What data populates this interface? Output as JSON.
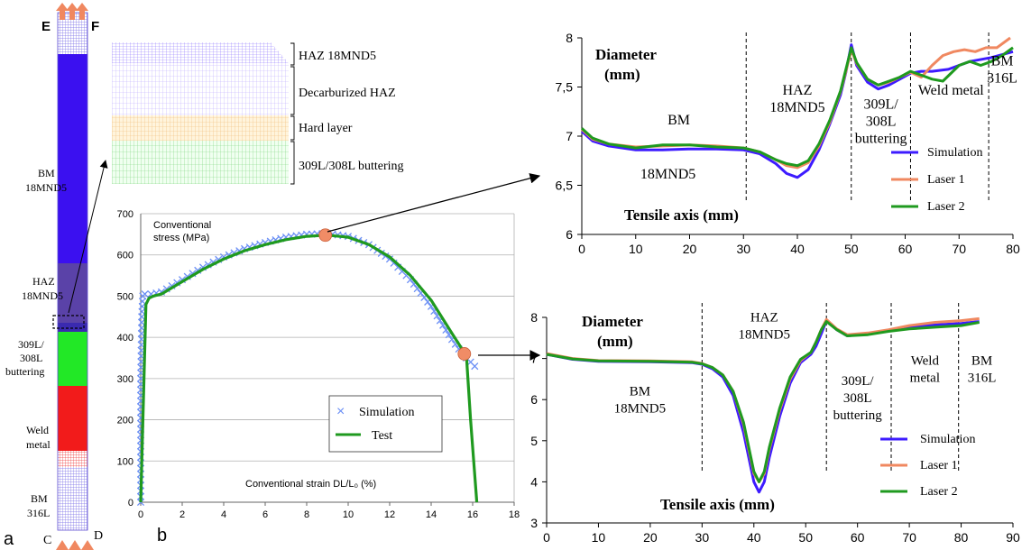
{
  "panel_labels": {
    "a": "a",
    "b": "b"
  },
  "specimen": {
    "corner_labels": {
      "E": "E",
      "F": "F",
      "C": "C",
      "D": "D"
    },
    "zones": [
      {
        "key": "bm_18mnd5",
        "lines": [
          "BM",
          "18MND5"
        ],
        "color": "#3b10f0"
      },
      {
        "key": "haz_18mnd5",
        "lines": [
          "HAZ",
          "18MND5"
        ],
        "color": "#5a42a8"
      },
      {
        "key": "buttering",
        "lines": [
          "309L/",
          "308L",
          "buttering"
        ],
        "color": "#22e826"
      },
      {
        "key": "weld_metal",
        "lines": [
          "Weld",
          "metal"
        ],
        "color": "#f21b1b"
      },
      {
        "key": "bm_316l",
        "lines": [
          "BM",
          "316L"
        ],
        "color": "#7a6ee8"
      }
    ]
  },
  "mesh_zoom": {
    "layers": [
      {
        "label": "HAZ 18MND5",
        "color": "#8e74ff"
      },
      {
        "label": "Decarburized HAZ",
        "color": "#b9a8ff"
      },
      {
        "label": "Hard layer",
        "color": "#ffd9a0"
      },
      {
        "label": "309L/308L buttering",
        "color": "#9be89b"
      }
    ]
  },
  "colors": {
    "simulation": "#3d1bff",
    "laser1": "#f08860",
    "laser2": "#1f9a1f",
    "test": "#1f9a1f",
    "sim_marker": "#6b8ff5",
    "highlight": "#f08c66"
  },
  "chart_data": [
    {
      "id": "stress_strain",
      "type": "line",
      "xlabel": "Conventional strain DL/L₀ (%)",
      "ylabel": "Conventional stress (MPa)",
      "ylabel_lines": [
        "Conventional",
        "stress (MPa)"
      ],
      "xlim": [
        0,
        18
      ],
      "ylim": [
        0,
        700
      ],
      "xticks": [
        0,
        2,
        4,
        6,
        8,
        10,
        12,
        14,
        16,
        18
      ],
      "yticks": [
        0,
        100,
        200,
        300,
        400,
        500,
        600,
        700
      ],
      "grid": "horizontal",
      "legend_position": "center-right",
      "series": [
        {
          "name": "Simulation",
          "marker": "x",
          "x": [
            0,
            0,
            0,
            0.05,
            0.1,
            0.2,
            0.5,
            1,
            2,
            3,
            4,
            5,
            6,
            7,
            8,
            9,
            10,
            11,
            12,
            13,
            14,
            15,
            15.5,
            16.1
          ],
          "y": [
            0,
            150,
            300,
            450,
            500,
            505,
            505,
            510,
            540,
            570,
            595,
            615,
            630,
            643,
            650,
            652,
            645,
            625,
            590,
            540,
            475,
            395,
            360,
            330
          ]
        },
        {
          "name": "Test",
          "x": [
            0,
            0.25,
            0.4,
            0.6,
            1,
            2,
            3,
            4,
            5,
            6,
            7,
            8,
            9,
            10,
            11,
            12,
            13,
            14,
            15,
            15.7,
            15.9,
            16.2
          ],
          "y": [
            0,
            480,
            495,
            500,
            505,
            535,
            565,
            590,
            610,
            625,
            637,
            645,
            648,
            643,
            625,
            595,
            550,
            490,
            410,
            355,
            200,
            0
          ]
        }
      ],
      "highlights": [
        {
          "x": 8.9,
          "y": 648
        },
        {
          "x": 15.6,
          "y": 360
        }
      ]
    },
    {
      "id": "diameter_top",
      "type": "line",
      "ylabel_lines": [
        "Diameter",
        "(mm)"
      ],
      "xlabel": "Tensile axis (mm)",
      "xlim": [
        0,
        80
      ],
      "ylim": [
        6,
        8
      ],
      "xticks": [
        0,
        10,
        20,
        30,
        40,
        50,
        60,
        70,
        80
      ],
      "ytick_labels": [
        {
          "v": 6,
          "t": "6"
        },
        {
          "v": 6.5,
          "t": "6,5"
        },
        {
          "v": 7,
          "t": "7"
        },
        {
          "v": 7.5,
          "t": "7,5"
        },
        {
          "v": 8,
          "t": "8"
        }
      ],
      "zone_lines_x": [
        30.5,
        50,
        61,
        75.5
      ],
      "zone_labels": [
        {
          "lines": [
            "BM"
          ],
          "x": 18,
          "y": 7.12
        },
        {
          "lines": [
            "18MND5"
          ],
          "x": 16,
          "y": 6.57
        },
        {
          "lines": [
            "HAZ",
            "18MND5"
          ],
          "x": 40,
          "y": 7.42
        },
        {
          "lines": [
            "309L/",
            "308L",
            "buttering"
          ],
          "x": 55.5,
          "y": 7.28
        },
        {
          "lines": [
            "Weld metal"
          ],
          "x": 68.5,
          "y": 7.42
        },
        {
          "lines": [
            "BM",
            "316L"
          ],
          "x": 78,
          "y": 7.72
        }
      ],
      "legend_position": "bottom-right",
      "series": [
        {
          "name": "Simulation",
          "x": [
            0,
            2,
            5,
            10,
            15,
            20,
            25,
            30,
            33,
            36,
            38,
            40,
            42,
            44,
            46,
            48,
            49,
            50,
            51,
            53,
            55,
            57,
            59,
            61,
            63,
            65,
            68,
            72,
            76,
            80
          ],
          "y": [
            7.05,
            6.95,
            6.9,
            6.86,
            6.86,
            6.87,
            6.87,
            6.86,
            6.82,
            6.72,
            6.62,
            6.58,
            6.66,
            6.86,
            7.12,
            7.42,
            7.65,
            7.93,
            7.72,
            7.55,
            7.48,
            7.52,
            7.58,
            7.64,
            7.66,
            7.66,
            7.68,
            7.76,
            7.8,
            7.86
          ]
        },
        {
          "name": "Laser 1",
          "x": [
            0,
            2,
            5,
            10,
            15,
            20,
            25,
            30,
            33,
            36,
            38,
            40,
            42,
            44,
            46,
            48,
            49,
            50,
            51,
            53,
            55,
            57,
            59,
            61,
            63,
            65,
            67,
            69,
            71,
            73,
            75,
            77,
            79.5
          ],
          "y": [
            7.07,
            6.97,
            6.92,
            6.89,
            6.9,
            6.91,
            6.9,
            6.88,
            6.84,
            6.76,
            6.7,
            6.68,
            6.73,
            6.9,
            7.14,
            7.45,
            7.66,
            7.88,
            7.74,
            7.58,
            7.52,
            7.55,
            7.6,
            7.65,
            7.6,
            7.72,
            7.82,
            7.86,
            7.88,
            7.86,
            7.9,
            7.9,
            8.0
          ]
        },
        {
          "name": "Laser 2",
          "x": [
            0,
            2,
            5,
            10,
            15,
            20,
            25,
            30,
            33,
            36,
            38,
            40,
            42,
            44,
            46,
            48,
            49,
            50,
            51,
            53,
            55,
            57,
            59,
            61,
            63,
            65,
            67,
            70,
            72,
            74,
            76,
            78,
            80
          ],
          "y": [
            7.08,
            6.98,
            6.92,
            6.88,
            6.91,
            6.91,
            6.89,
            6.88,
            6.84,
            6.76,
            6.72,
            6.7,
            6.75,
            6.92,
            7.16,
            7.46,
            7.68,
            7.9,
            7.75,
            7.58,
            7.52,
            7.56,
            7.6,
            7.66,
            7.62,
            7.58,
            7.56,
            7.72,
            7.76,
            7.72,
            7.76,
            7.82,
            7.9
          ]
        }
      ]
    },
    {
      "id": "diameter_bottom",
      "type": "line",
      "ylabel_lines": [
        "Diameter",
        "(mm)"
      ],
      "xlabel": "Tensile axis (mm)",
      "xlim": [
        0,
        90
      ],
      "ylim": [
        3,
        8
      ],
      "xticks": [
        0,
        10,
        20,
        30,
        40,
        50,
        60,
        70,
        80,
        90
      ],
      "ytick_labels": [
        {
          "v": 3,
          "t": "3"
        },
        {
          "v": 4,
          "t": "4"
        },
        {
          "v": 5,
          "t": "5"
        },
        {
          "v": 6,
          "t": "6"
        },
        {
          "v": 7,
          "t": "7"
        },
        {
          "v": 8,
          "t": "8"
        }
      ],
      "zone_lines_x": [
        30,
        54,
        66.5,
        79.5
      ],
      "zone_labels": [
        {
          "lines": [
            "HAZ",
            "18MND5"
          ],
          "x": 42,
          "y": 7.9
        },
        {
          "lines": [
            "BM",
            "18MND5"
          ],
          "x": 18,
          "y": 6.1
        },
        {
          "lines": [
            "309L/",
            "308L",
            "buttering"
          ],
          "x": 60,
          "y": 6.35
        },
        {
          "lines": [
            "Weld",
            "metal"
          ],
          "x": 73,
          "y": 6.85
        },
        {
          "lines": [
            "BM",
            "316L"
          ],
          "x": 84,
          "y": 6.85
        }
      ],
      "legend_position": "bottom-right",
      "series": [
        {
          "name": "Simulation",
          "x": [
            0,
            5,
            10,
            20,
            28,
            30,
            32,
            34,
            36,
            38,
            39,
            40,
            41,
            42,
            43,
            45,
            47,
            49,
            51,
            52,
            53,
            54,
            56,
            58,
            62,
            66,
            70,
            75,
            80,
            83.5
          ],
          "y": [
            7.1,
            6.98,
            6.93,
            6.92,
            6.9,
            6.86,
            6.75,
            6.55,
            6.1,
            5.2,
            4.6,
            4.0,
            3.75,
            4.0,
            4.6,
            5.6,
            6.4,
            6.9,
            7.1,
            7.3,
            7.6,
            7.92,
            7.7,
            7.55,
            7.6,
            7.68,
            7.75,
            7.82,
            7.85,
            7.9
          ]
        },
        {
          "name": "Laser 1",
          "x": [
            0,
            5,
            10,
            20,
            28,
            30,
            32,
            34,
            36,
            38,
            39,
            40,
            41,
            42,
            43,
            45,
            47,
            49,
            51,
            52,
            53,
            54,
            56,
            58,
            62,
            66,
            70,
            75,
            80,
            83.5
          ],
          "y": [
            7.12,
            7.0,
            6.95,
            6.94,
            6.92,
            6.88,
            6.78,
            6.6,
            6.2,
            5.4,
            4.8,
            4.2,
            4.0,
            4.2,
            4.8,
            5.75,
            6.5,
            6.95,
            7.15,
            7.4,
            7.7,
            7.95,
            7.72,
            7.58,
            7.62,
            7.7,
            7.8,
            7.88,
            7.92,
            7.97
          ]
        },
        {
          "name": "Laser 2",
          "x": [
            0,
            5,
            10,
            20,
            28,
            30,
            32,
            34,
            36,
            38,
            39,
            40,
            41,
            42,
            43,
            45,
            47,
            49,
            51,
            52,
            53,
            54,
            56,
            58,
            62,
            66,
            70,
            75,
            80,
            83.5
          ],
          "y": [
            7.1,
            6.99,
            6.94,
            6.93,
            6.91,
            6.87,
            6.78,
            6.6,
            6.2,
            5.45,
            4.85,
            4.25,
            4.0,
            4.25,
            4.85,
            5.8,
            6.55,
            6.98,
            7.15,
            7.4,
            7.7,
            7.9,
            7.7,
            7.55,
            7.58,
            7.66,
            7.72,
            7.76,
            7.8,
            7.88
          ]
        }
      ]
    }
  ]
}
